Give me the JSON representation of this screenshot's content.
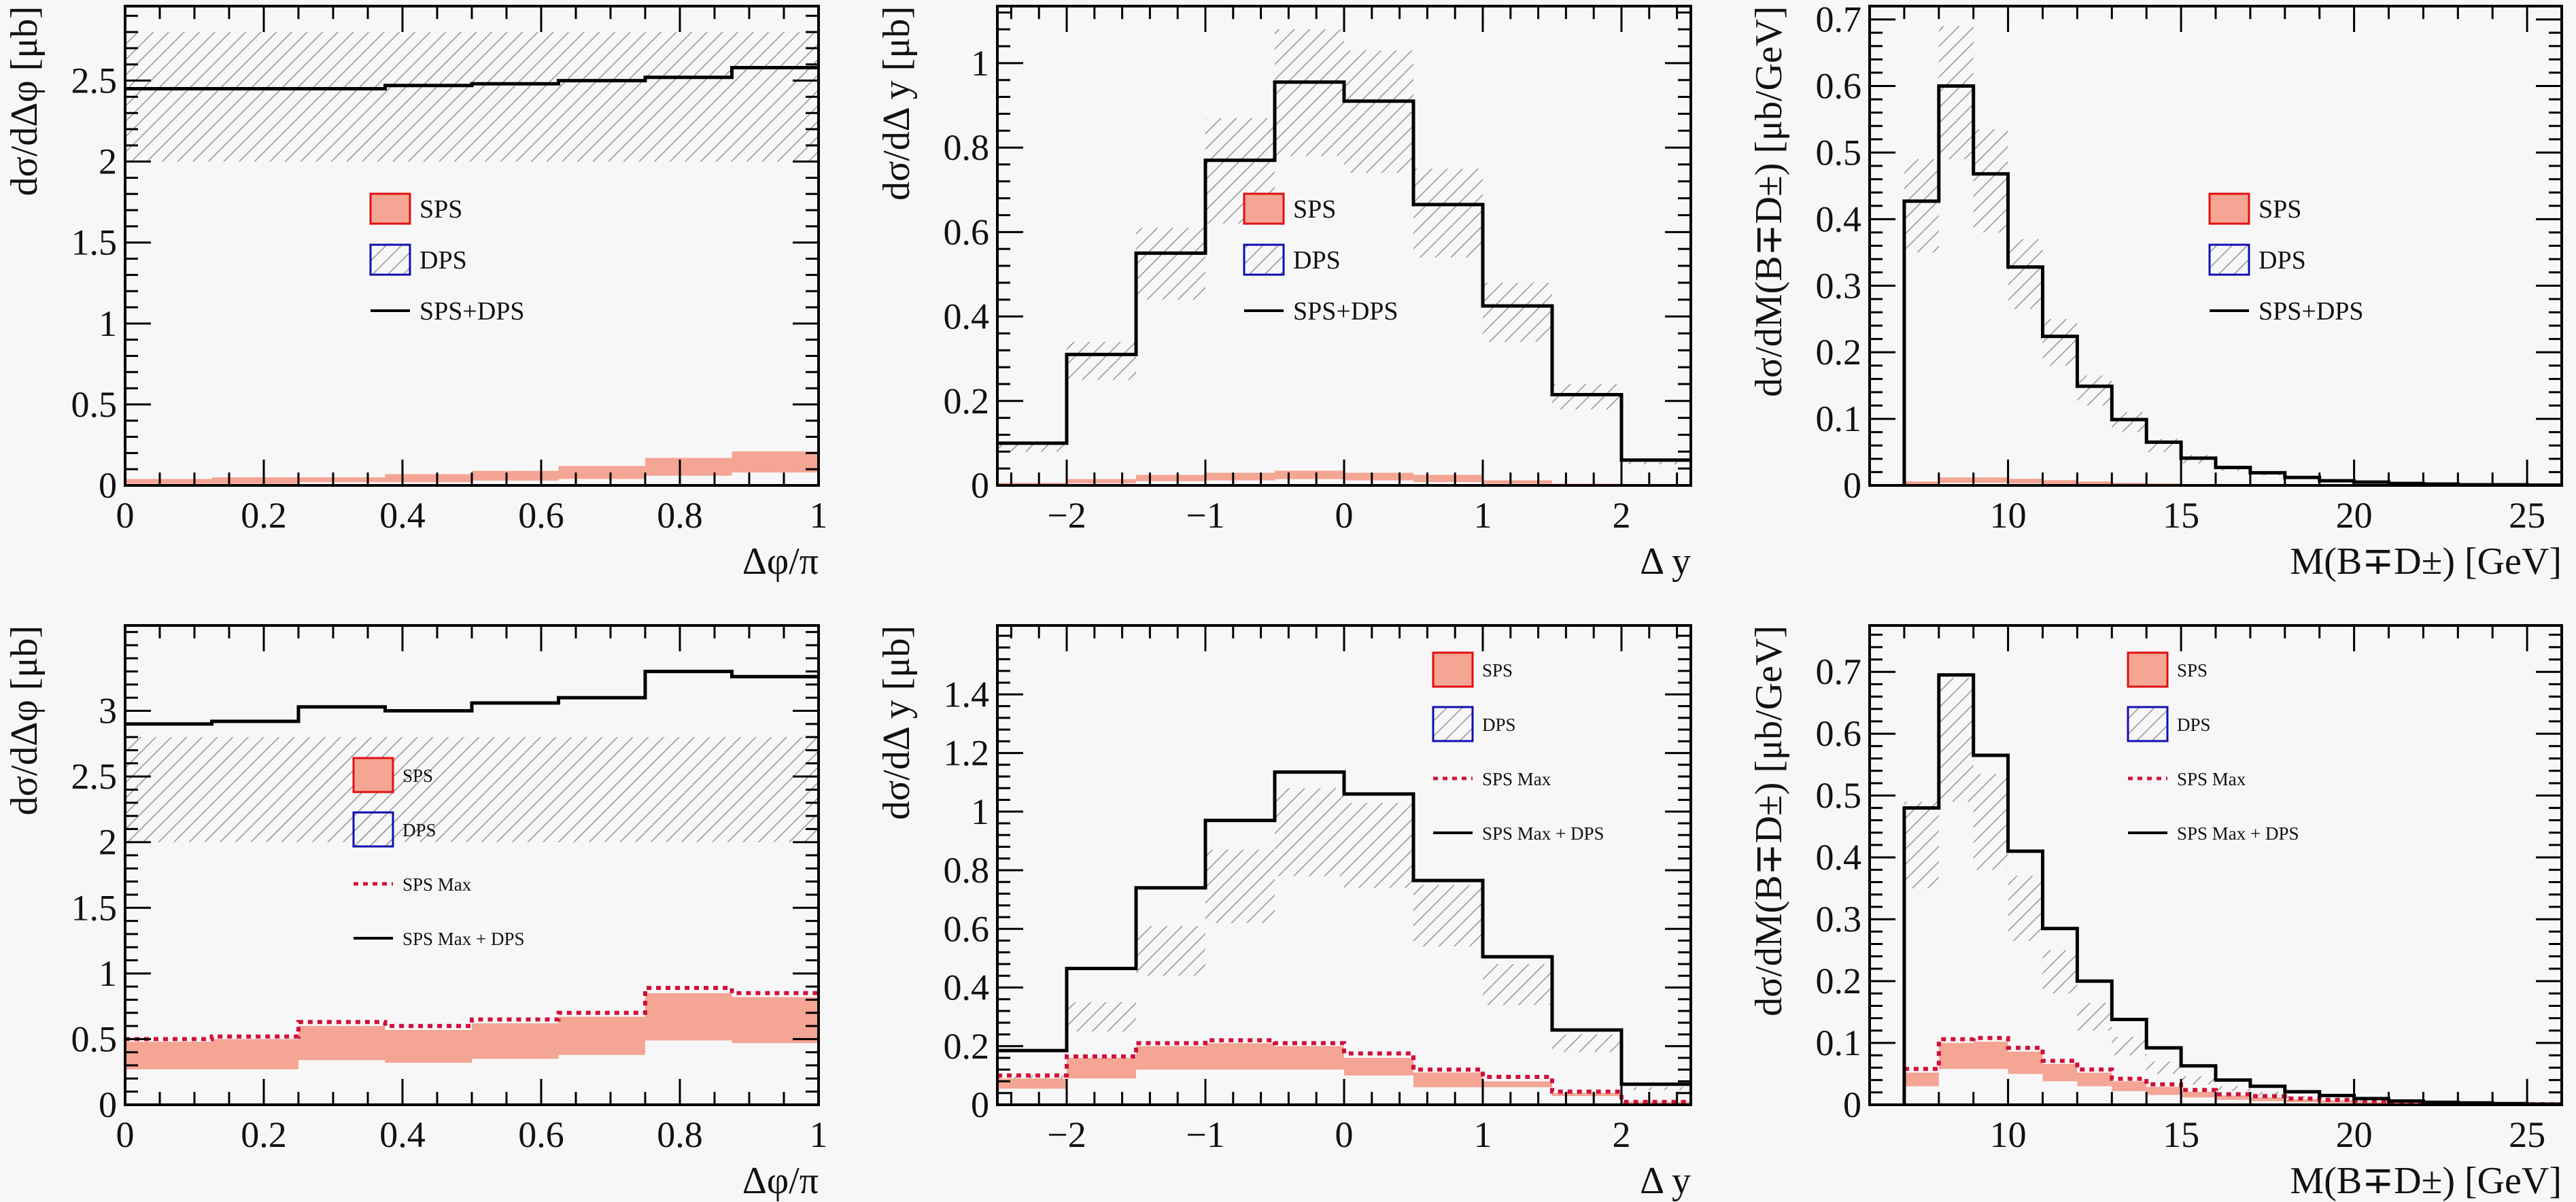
{
  "colors": {
    "background": "#f7f7f7",
    "frame": "#000000",
    "sps_fill": "#f4a593",
    "sps_border": "#e01010",
    "dps_hatch": "#9a9a9a",
    "dps_border": "#1010b0",
    "sum_line": "#000000",
    "sps_max_line": "#d0103a"
  },
  "chart_data": [
    {
      "id": "top-left",
      "type": "histogram",
      "xlabel": "Δφ/π",
      "ylabel": "dσ/dΔφ [μb]",
      "xlim": [
        0,
        1
      ],
      "ylim": [
        0,
        2.96
      ],
      "xticks": [
        0,
        0.2,
        0.4,
        0.6,
        0.8,
        1
      ],
      "xtick_labels": [
        "0",
        "0.2",
        "0.4",
        "0.6",
        "0.8",
        "1"
      ],
      "yticks": [
        0,
        0.5,
        1,
        1.5,
        2,
        2.5
      ],
      "ytick_labels": [
        "0",
        "0.5",
        "1",
        "1.5",
        "2",
        "2.5"
      ],
      "bin_edges": [
        0,
        0.125,
        0.25,
        0.375,
        0.5,
        0.625,
        0.75,
        0.875,
        1
      ],
      "dps_band": {
        "low": [
          2.0,
          2.0,
          2.0,
          2.0,
          2.0,
          2.0,
          2.0,
          2.0
        ],
        "high": [
          2.8,
          2.8,
          2.8,
          2.8,
          2.8,
          2.8,
          2.8,
          2.8
        ]
      },
      "sps_band": {
        "low": [
          0.01,
          0.01,
          0.02,
          0.02,
          0.03,
          0.04,
          0.06,
          0.08
        ],
        "high": [
          0.04,
          0.05,
          0.05,
          0.07,
          0.09,
          0.12,
          0.17,
          0.21
        ]
      },
      "sps_max": null,
      "sum": {
        "name": "SPS+DPS",
        "values": [
          2.45,
          2.45,
          2.45,
          2.47,
          2.48,
          2.5,
          2.52,
          2.58
        ]
      },
      "legend": {
        "position": "center",
        "size": "big",
        "entries": [
          {
            "kind": "sps",
            "label": "SPS"
          },
          {
            "kind": "dps",
            "label": "DPS"
          },
          {
            "kind": "sum",
            "label": "SPS+DPS"
          }
        ]
      }
    },
    {
      "id": "top-middle",
      "type": "histogram",
      "xlabel": "Δ y",
      "ylabel": "dσ/dΔ y [μb]",
      "xlim": [
        -2.5,
        2.5
      ],
      "ylim": [
        0,
        1.135
      ],
      "xticks": [
        -2,
        -1,
        0,
        1,
        2
      ],
      "xtick_labels": [
        "−2",
        "−1",
        "0",
        "1",
        "2"
      ],
      "yticks": [
        0,
        0.2,
        0.4,
        0.6,
        0.8,
        1
      ],
      "ytick_labels": [
        "0",
        "0.2",
        "0.4",
        "0.6",
        "0.8",
        "1"
      ],
      "bin_edges": [
        -2.5,
        -2,
        -1.5,
        -1,
        -0.5,
        0,
        0.5,
        1,
        1.5,
        2,
        2.5
      ],
      "dps_band": {
        "low": [
          0.08,
          0.25,
          0.44,
          0.62,
          0.78,
          0.74,
          0.54,
          0.34,
          0.18,
          0.05
        ],
        "high": [
          0.1,
          0.34,
          0.61,
          0.87,
          1.08,
          1.03,
          0.75,
          0.48,
          0.24,
          0.06
        ]
      },
      "sps_band": {
        "low": [
          0.002,
          0.005,
          0.01,
          0.012,
          0.015,
          0.012,
          0.008,
          0.004,
          0.002,
          0.001
        ],
        "high": [
          0.006,
          0.015,
          0.025,
          0.03,
          0.035,
          0.03,
          0.025,
          0.012,
          0.004,
          0.002
        ]
      },
      "sps_max": null,
      "sum": {
        "name": "SPS+DPS",
        "values": [
          0.1,
          0.31,
          0.55,
          0.77,
          0.955,
          0.91,
          0.665,
          0.425,
          0.215,
          0.06
        ]
      },
      "legend": {
        "position": "center",
        "size": "big",
        "entries": [
          {
            "kind": "sps",
            "label": "SPS"
          },
          {
            "kind": "dps",
            "label": "DPS"
          },
          {
            "kind": "sum",
            "label": "SPS+DPS"
          }
        ]
      }
    },
    {
      "id": "top-right",
      "type": "histogram",
      "xlabel": "M(B∓D±) [GeV]",
      "ylabel": "dσ/dM(B∓D±) [μb/GeV]",
      "xlim": [
        6,
        26
      ],
      "ylim": [
        0,
        0.72
      ],
      "xticks": [
        10,
        15,
        20,
        25
      ],
      "xtick_labels": [
        "10",
        "15",
        "20",
        "25"
      ],
      "yticks": [
        0,
        0.1,
        0.2,
        0.3,
        0.4,
        0.5,
        0.6,
        0.7
      ],
      "ytick_labels": [
        "0",
        "0.1",
        "0.2",
        "0.3",
        "0.4",
        "0.5",
        "0.6",
        "0.7"
      ],
      "bin_edges": [
        7,
        8,
        9,
        10,
        11,
        12,
        13,
        14,
        15,
        16,
        17,
        18,
        19,
        20,
        21,
        22,
        23,
        24,
        25,
        26
      ],
      "dps_band": {
        "low": [
          0.35,
          0.49,
          0.38,
          0.265,
          0.18,
          0.12,
          0.08,
          0.05,
          0.033,
          0.022,
          0.015,
          0.01,
          0.006,
          0.004,
          0.002,
          0.0015,
          0.001,
          0.0008,
          0.0004
        ],
        "high": [
          0.49,
          0.69,
          0.535,
          0.37,
          0.25,
          0.165,
          0.11,
          0.07,
          0.046,
          0.03,
          0.021,
          0.014,
          0.008,
          0.006,
          0.003,
          0.002,
          0.0012,
          0.001,
          0.0006
        ]
      },
      "sps_band": {
        "low": [
          0.002,
          0.004,
          0.004,
          0.003,
          0.002,
          0.002,
          0.001,
          0.001,
          0.0005,
          0.0003,
          0.0002,
          0.0001,
          0.0001,
          0,
          0,
          0,
          0,
          0,
          0
        ],
        "high": [
          0.006,
          0.012,
          0.012,
          0.01,
          0.008,
          0.006,
          0.004,
          0.003,
          0.002,
          0.001,
          0.001,
          0.0005,
          0.0003,
          0.0002,
          0.0001,
          0.0001,
          0,
          0,
          0
        ]
      },
      "sps_max": null,
      "sum": {
        "name": "SPS+DPS",
        "values": [
          0.427,
          0.6,
          0.468,
          0.328,
          0.224,
          0.149,
          0.099,
          0.065,
          0.041,
          0.027,
          0.019,
          0.012,
          0.007,
          0.005,
          0.003,
          0.002,
          0.001,
          0.001,
          0.0005
        ]
      },
      "legend": {
        "position": "center-right",
        "size": "big",
        "entries": [
          {
            "kind": "sps",
            "label": "SPS"
          },
          {
            "kind": "dps",
            "label": "DPS"
          },
          {
            "kind": "sum",
            "label": "SPS+DPS"
          }
        ]
      }
    },
    {
      "id": "bottom-left",
      "type": "histogram",
      "xlabel": "Δφ/π",
      "ylabel": "dσ/dΔφ [μb]",
      "xlim": [
        0,
        1
      ],
      "ylim": [
        0,
        3.65
      ],
      "xticks": [
        0,
        0.2,
        0.4,
        0.6,
        0.8,
        1
      ],
      "xtick_labels": [
        "0",
        "0.2",
        "0.4",
        "0.6",
        "0.8",
        "1"
      ],
      "yticks": [
        0,
        0.5,
        1,
        1.5,
        2,
        2.5,
        3
      ],
      "ytick_labels": [
        "0",
        "0.5",
        "1",
        "1.5",
        "2",
        "2.5",
        "3"
      ],
      "bin_edges": [
        0,
        0.125,
        0.25,
        0.375,
        0.5,
        0.625,
        0.75,
        0.875,
        1
      ],
      "dps_band": {
        "low": [
          2.0,
          2.0,
          2.0,
          2.0,
          2.0,
          2.0,
          2.0,
          2.0
        ],
        "high": [
          2.8,
          2.8,
          2.8,
          2.8,
          2.8,
          2.8,
          2.8,
          2.8
        ]
      },
      "sps_band": {
        "low": [
          0.27,
          0.27,
          0.34,
          0.32,
          0.35,
          0.38,
          0.49,
          0.47
        ],
        "high": [
          0.48,
          0.5,
          0.6,
          0.57,
          0.62,
          0.67,
          0.85,
          0.82
        ]
      },
      "sps_max": {
        "name": "SPS Max",
        "values": [
          0.5,
          0.52,
          0.63,
          0.6,
          0.65,
          0.7,
          0.89,
          0.85
        ]
      },
      "sum": {
        "name": "SPS Max + DPS",
        "values": [
          2.9,
          2.92,
          3.03,
          3.0,
          3.06,
          3.1,
          3.3,
          3.26
        ]
      },
      "legend": {
        "position": "center",
        "size": "small",
        "entries": [
          {
            "kind": "sps",
            "label": "SPS"
          },
          {
            "kind": "dps",
            "label": "DPS"
          },
          {
            "kind": "spsmax",
            "label": "SPS Max"
          },
          {
            "kind": "sum",
            "label": "SPS Max + DPS"
          }
        ]
      }
    },
    {
      "id": "bottom-middle",
      "type": "histogram",
      "xlabel": "Δ y",
      "ylabel": "dσ/dΔ y [μb]",
      "xlim": [
        -2.5,
        2.5
      ],
      "ylim": [
        0,
        1.635
      ],
      "xticks": [
        -2,
        -1,
        0,
        1,
        2
      ],
      "xtick_labels": [
        "−2",
        "−1",
        "0",
        "1",
        "2"
      ],
      "yticks": [
        0,
        0.2,
        0.4,
        0.6,
        0.8,
        1,
        1.2,
        1.4
      ],
      "ytick_labels": [
        "0",
        "0.2",
        "0.4",
        "0.6",
        "0.8",
        "1",
        "1.2",
        "1.4"
      ],
      "bin_edges": [
        -2.5,
        -2,
        -1.5,
        -1,
        -0.5,
        0,
        0.5,
        1,
        1.5,
        2,
        2.5
      ],
      "dps_band": {
        "low": [
          0.08,
          0.25,
          0.44,
          0.62,
          0.78,
          0.74,
          0.54,
          0.34,
          0.18,
          0.05
        ],
        "high": [
          0.1,
          0.35,
          0.61,
          0.87,
          1.08,
          1.03,
          0.75,
          0.48,
          0.24,
          0.06
        ]
      },
      "sps_band": {
        "low": [
          0.055,
          0.09,
          0.12,
          0.12,
          0.12,
          0.1,
          0.06,
          0.06,
          0.03,
          0.005
        ],
        "high": [
          0.09,
          0.16,
          0.2,
          0.21,
          0.2,
          0.16,
          0.11,
          0.08,
          0.04,
          0.01
        ]
      },
      "sps_max": {
        "name": "SPS Max",
        "values": [
          0.1,
          0.165,
          0.21,
          0.22,
          0.21,
          0.175,
          0.12,
          0.095,
          0.045,
          0.01
        ]
      },
      "sum": {
        "name": "SPS Max + DPS",
        "values": [
          0.185,
          0.465,
          0.74,
          0.97,
          1.135,
          1.06,
          0.765,
          0.505,
          0.255,
          0.07
        ]
      },
      "legend": {
        "position": "top-right",
        "size": "small",
        "entries": [
          {
            "kind": "sps",
            "label": "SPS"
          },
          {
            "kind": "dps",
            "label": "DPS"
          },
          {
            "kind": "spsmax",
            "label": "SPS Max"
          },
          {
            "kind": "sum",
            "label": "SPS Max + DPS"
          }
        ]
      }
    },
    {
      "id": "bottom-right",
      "type": "histogram",
      "xlabel": "M(B∓D±) [GeV]",
      "ylabel": "dσ/dM(B∓D±) [μb/GeV]",
      "xlim": [
        6,
        26
      ],
      "ylim": [
        0,
        0.775
      ],
      "xticks": [
        10,
        15,
        20,
        25
      ],
      "xtick_labels": [
        "10",
        "15",
        "20",
        "25"
      ],
      "yticks": [
        0,
        0.1,
        0.2,
        0.3,
        0.4,
        0.5,
        0.6,
        0.7
      ],
      "ytick_labels": [
        "0",
        "0.1",
        "0.2",
        "0.3",
        "0.4",
        "0.5",
        "0.6",
        "0.7"
      ],
      "bin_edges": [
        7,
        8,
        9,
        10,
        11,
        12,
        13,
        14,
        15,
        16,
        17,
        18,
        19,
        20,
        21,
        22,
        23,
        24,
        25,
        26
      ],
      "dps_band": {
        "low": [
          0.35,
          0.49,
          0.38,
          0.265,
          0.18,
          0.12,
          0.08,
          0.05,
          0.033,
          0.022,
          0.015,
          0.01,
          0.006,
          0.004,
          0.002,
          0.0015,
          0.001,
          0.0008,
          0.0004
        ],
        "high": [
          0.49,
          0.69,
          0.535,
          0.37,
          0.25,
          0.165,
          0.11,
          0.07,
          0.046,
          0.03,
          0.021,
          0.014,
          0.008,
          0.006,
          0.003,
          0.002,
          0.0012,
          0.001,
          0.0006
        ]
      },
      "sps_band": {
        "low": [
          0.03,
          0.058,
          0.058,
          0.05,
          0.038,
          0.03,
          0.022,
          0.016,
          0.012,
          0.008,
          0.006,
          0.004,
          0.003,
          0.002,
          0.0015,
          0.001,
          0.0008,
          0.0005,
          0.0003
        ],
        "high": [
          0.052,
          0.1,
          0.102,
          0.086,
          0.066,
          0.052,
          0.038,
          0.029,
          0.021,
          0.015,
          0.012,
          0.009,
          0.007,
          0.005,
          0.0035,
          0.0025,
          0.0018,
          0.001,
          0.0008
        ]
      },
      "sps_max": {
        "name": "SPS Max",
        "values": [
          0.058,
          0.106,
          0.108,
          0.092,
          0.071,
          0.057,
          0.042,
          0.033,
          0.024,
          0.017,
          0.014,
          0.01,
          0.008,
          0.006,
          0.004,
          0.003,
          0.002,
          0.001,
          0.001
        ]
      },
      "sum": {
        "name": "SPS Max + DPS",
        "values": [
          0.48,
          0.695,
          0.565,
          0.41,
          0.285,
          0.2,
          0.138,
          0.092,
          0.063,
          0.04,
          0.03,
          0.021,
          0.015,
          0.01,
          0.006,
          0.004,
          0.003,
          0.002,
          0.001
        ]
      },
      "legend": {
        "position": "top-right",
        "size": "small",
        "entries": [
          {
            "kind": "sps",
            "label": "SPS"
          },
          {
            "kind": "dps",
            "label": "DPS"
          },
          {
            "kind": "spsmax",
            "label": "SPS Max"
          },
          {
            "kind": "sum",
            "label": "SPS Max + DPS"
          }
        ]
      }
    }
  ]
}
